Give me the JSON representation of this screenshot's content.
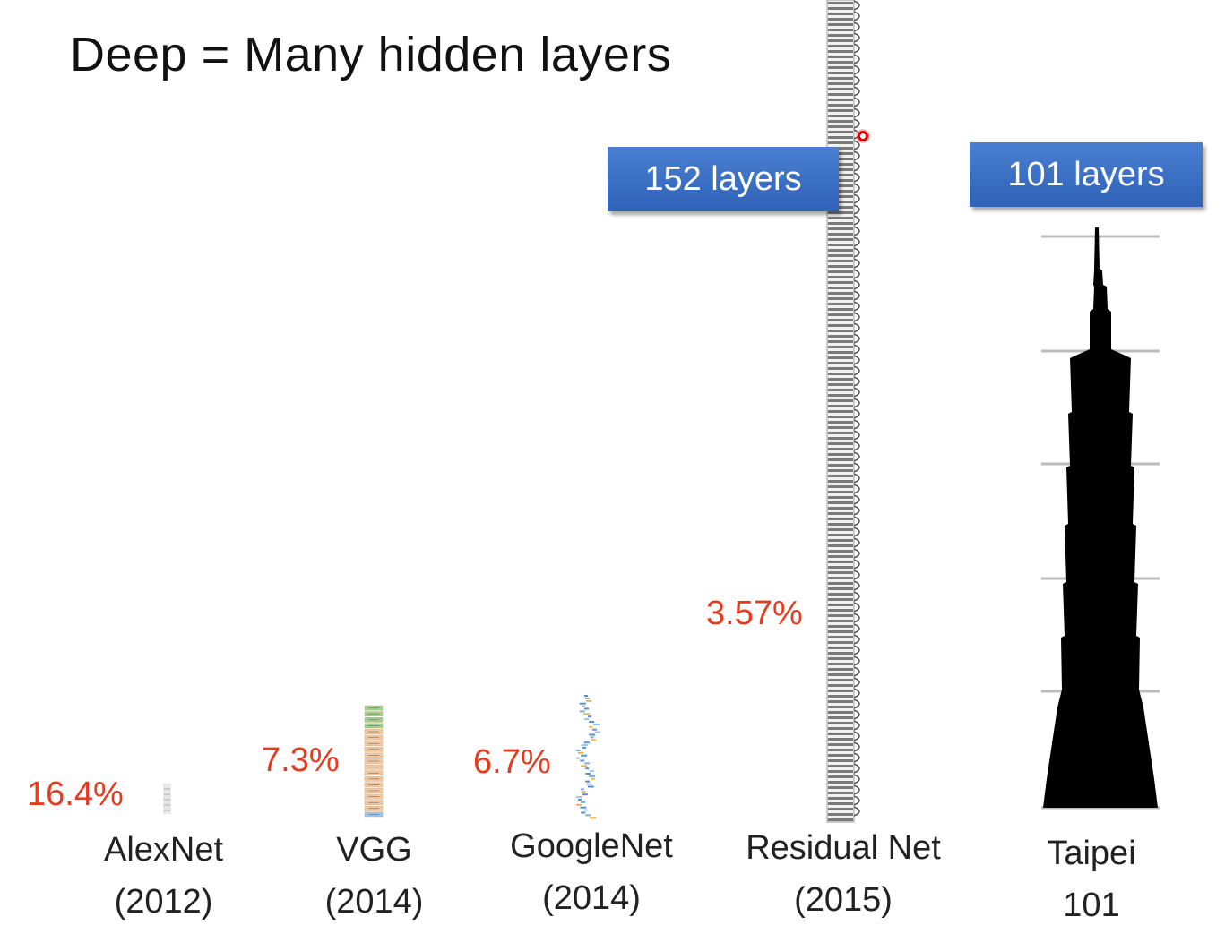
{
  "title": "Deep = Many hidden layers",
  "networks": [
    {
      "name": "AlexNet",
      "year": "(2012)",
      "error": "16.4%"
    },
    {
      "name": "VGG",
      "year": "(2014)",
      "error": "7.3%"
    },
    {
      "name": "GoogleNet",
      "year": "(2014)",
      "error": "6.7%"
    },
    {
      "name": "Residual Net",
      "year": "(2015)",
      "error": "3.57%",
      "badge": "152 layers"
    },
    {
      "name": "Taipei",
      "year": "101",
      "badge": "101 layers"
    }
  ],
  "colors": {
    "error": "#e53b1f",
    "badge": "#3a6cc2",
    "tower": "#000000"
  }
}
